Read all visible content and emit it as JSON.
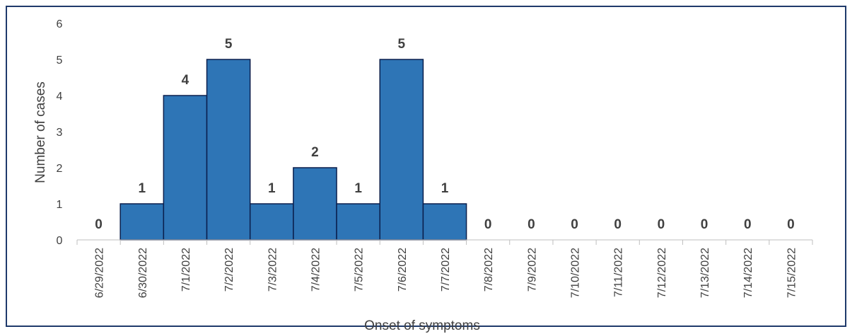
{
  "chart_data": {
    "type": "bar",
    "title": "",
    "xlabel": "Onset of symptoms",
    "ylabel": "Number of cases",
    "ylim": [
      0,
      6
    ],
    "yticks": [
      0,
      1,
      2,
      3,
      4,
      5,
      6
    ],
    "grid": false,
    "legend": "none",
    "bar_color": "#2e75b6",
    "bar_edge_color": "#0b1f4d",
    "categories": [
      "6/29/2022",
      "6/30/2022",
      "7/1/2022",
      "7/2/2022",
      "7/3/2022",
      "7/4/2022",
      "7/5/2022",
      "7/6/2022",
      "7/7/2022",
      "7/8/2022",
      "7/9/2022",
      "7/10/2022",
      "7/11/2022",
      "7/12/2022",
      "7/13/2022",
      "7/14/2022",
      "7/15/2022"
    ],
    "values": [
      0,
      1,
      4,
      5,
      1,
      2,
      1,
      5,
      1,
      0,
      0,
      0,
      0,
      0,
      0,
      0,
      0
    ]
  }
}
